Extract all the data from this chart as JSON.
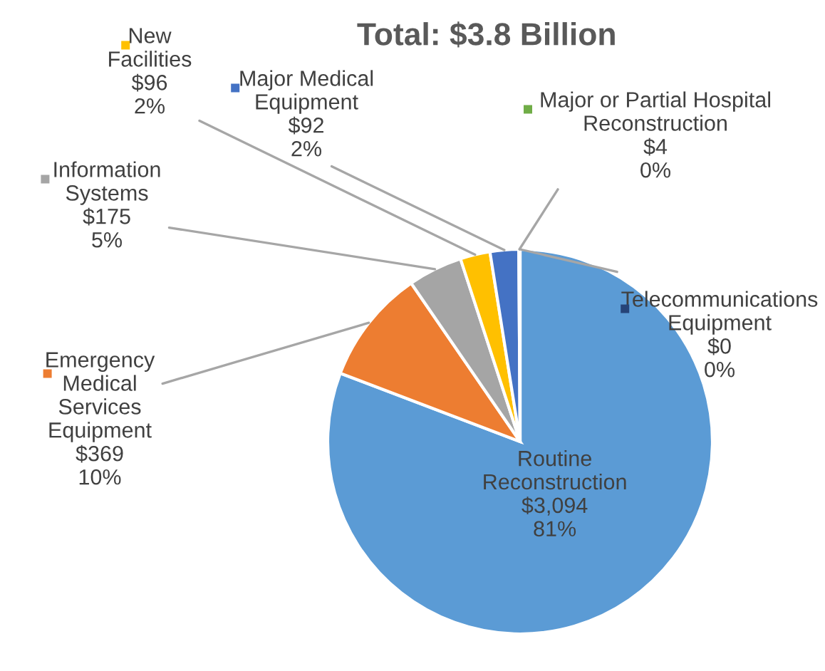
{
  "chart_data": {
    "type": "pie",
    "title": "Total: $3.8 Billion",
    "categories": [
      "Routine Reconstruction",
      "Emergency Medical Services Equipment",
      "Information Systems",
      "New Facilities",
      "Major Medical Equipment",
      "Major or Partial Hospital Reconstruction",
      "Telecommunications Equipment"
    ],
    "values": [
      3094,
      369,
      175,
      96,
      92,
      4,
      0
    ],
    "value_labels": [
      "$3,094\n81%",
      "$369\n10%",
      "$175\n5%",
      "$96\n2%",
      "$92\n2%",
      "$4\n0%",
      "$0\n0%"
    ],
    "colors": [
      "#5b9bd5",
      "#ed7d31",
      "#a5a5a5",
      "#ffc000",
      "#4472c4",
      "#70ad47",
      "#264478"
    ],
    "legend": "top"
  }
}
